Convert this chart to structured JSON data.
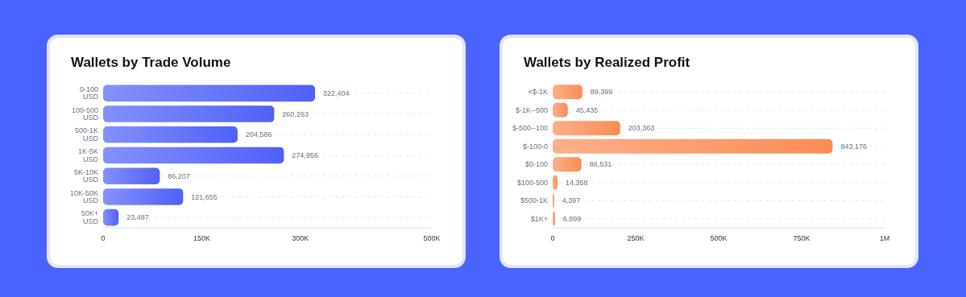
{
  "chart_data": [
    {
      "type": "bar",
      "orientation": "horizontal",
      "title": "Wallets by Trade Volume",
      "categories": [
        "0-100 USD",
        "100-500 USD",
        "500-1K USD",
        "1K-5K USD",
        "5K-10K USD",
        "10K-50K USD",
        "50K+ USD"
      ],
      "series": [
        {
          "color": "#5060f8",
          "values": [
            322404,
            260263,
            204586,
            274956,
            86207,
            121655,
            23487
          ],
          "value_labels": [
            "322,404",
            "260,263",
            "204,586",
            "274,956",
            "86,207",
            "121,655",
            "23,487"
          ]
        }
      ],
      "xlim": [
        0,
        500000
      ],
      "xticks": [
        0,
        {
          "value": 150000,
          "label": "150K"
        },
        {
          "value": 300000,
          "label": "300K"
        },
        {
          "value": 500000,
          "label": "500K"
        }
      ],
      "grid": "y"
    },
    {
      "type": "bar",
      "orientation": "horizontal",
      "title": "Wallets by Realized Profit",
      "categories": [
        "<$-1K",
        "$-1K--500",
        "$-500--100",
        "$-100-0",
        "$0-100",
        "$100-500",
        "$500-1K",
        "$1K+"
      ],
      "series": [
        {
          "color": "#fb8c56",
          "values": [
            89399,
            45435,
            203363,
            843176,
            86531,
            14358,
            4397,
            6899
          ],
          "value_labels": [
            "89,399",
            "45,435",
            "203,363",
            "843,176",
            "86,531",
            "14,358",
            "4,397",
            "6,899"
          ]
        }
      ],
      "xlim": [
        0,
        1000000
      ],
      "xticks": [
        0,
        {
          "value": 250000,
          "label": "250K"
        },
        {
          "value": 500000,
          "label": "500K"
        },
        {
          "value": 750000,
          "label": "750K"
        },
        {
          "value": 1000000,
          "label": "1M"
        }
      ],
      "grid": "y"
    }
  ]
}
